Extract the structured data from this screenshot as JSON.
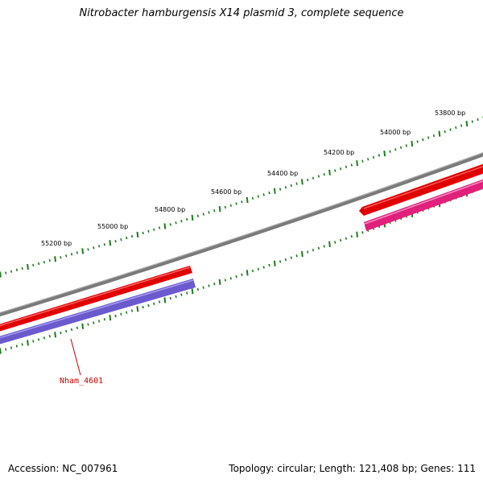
{
  "title": "Nitrobacter hamburgensis X14 plasmid 3, complete sequence",
  "accession_text": "Accession: NC_007961",
  "summary_text": "Topology: circular; Length: 121,408 bp; Genes: 111",
  "scale_labels": [
    "53800 bp",
    "54000 bp",
    "54200 bp",
    "54400 bp",
    "54600 bp",
    "54800 bp",
    "55000 bp",
    "55200 bp"
  ],
  "gene_label": "Nham_4601",
  "colors": {
    "backbone": "#7a7a7a",
    "tick": "#1f7a1f",
    "gene_forward": "#e00000",
    "gene_reverse_blue": "#6a5acd",
    "gene_reverse_pink": "#e0207a",
    "label": "#cc0000"
  }
}
